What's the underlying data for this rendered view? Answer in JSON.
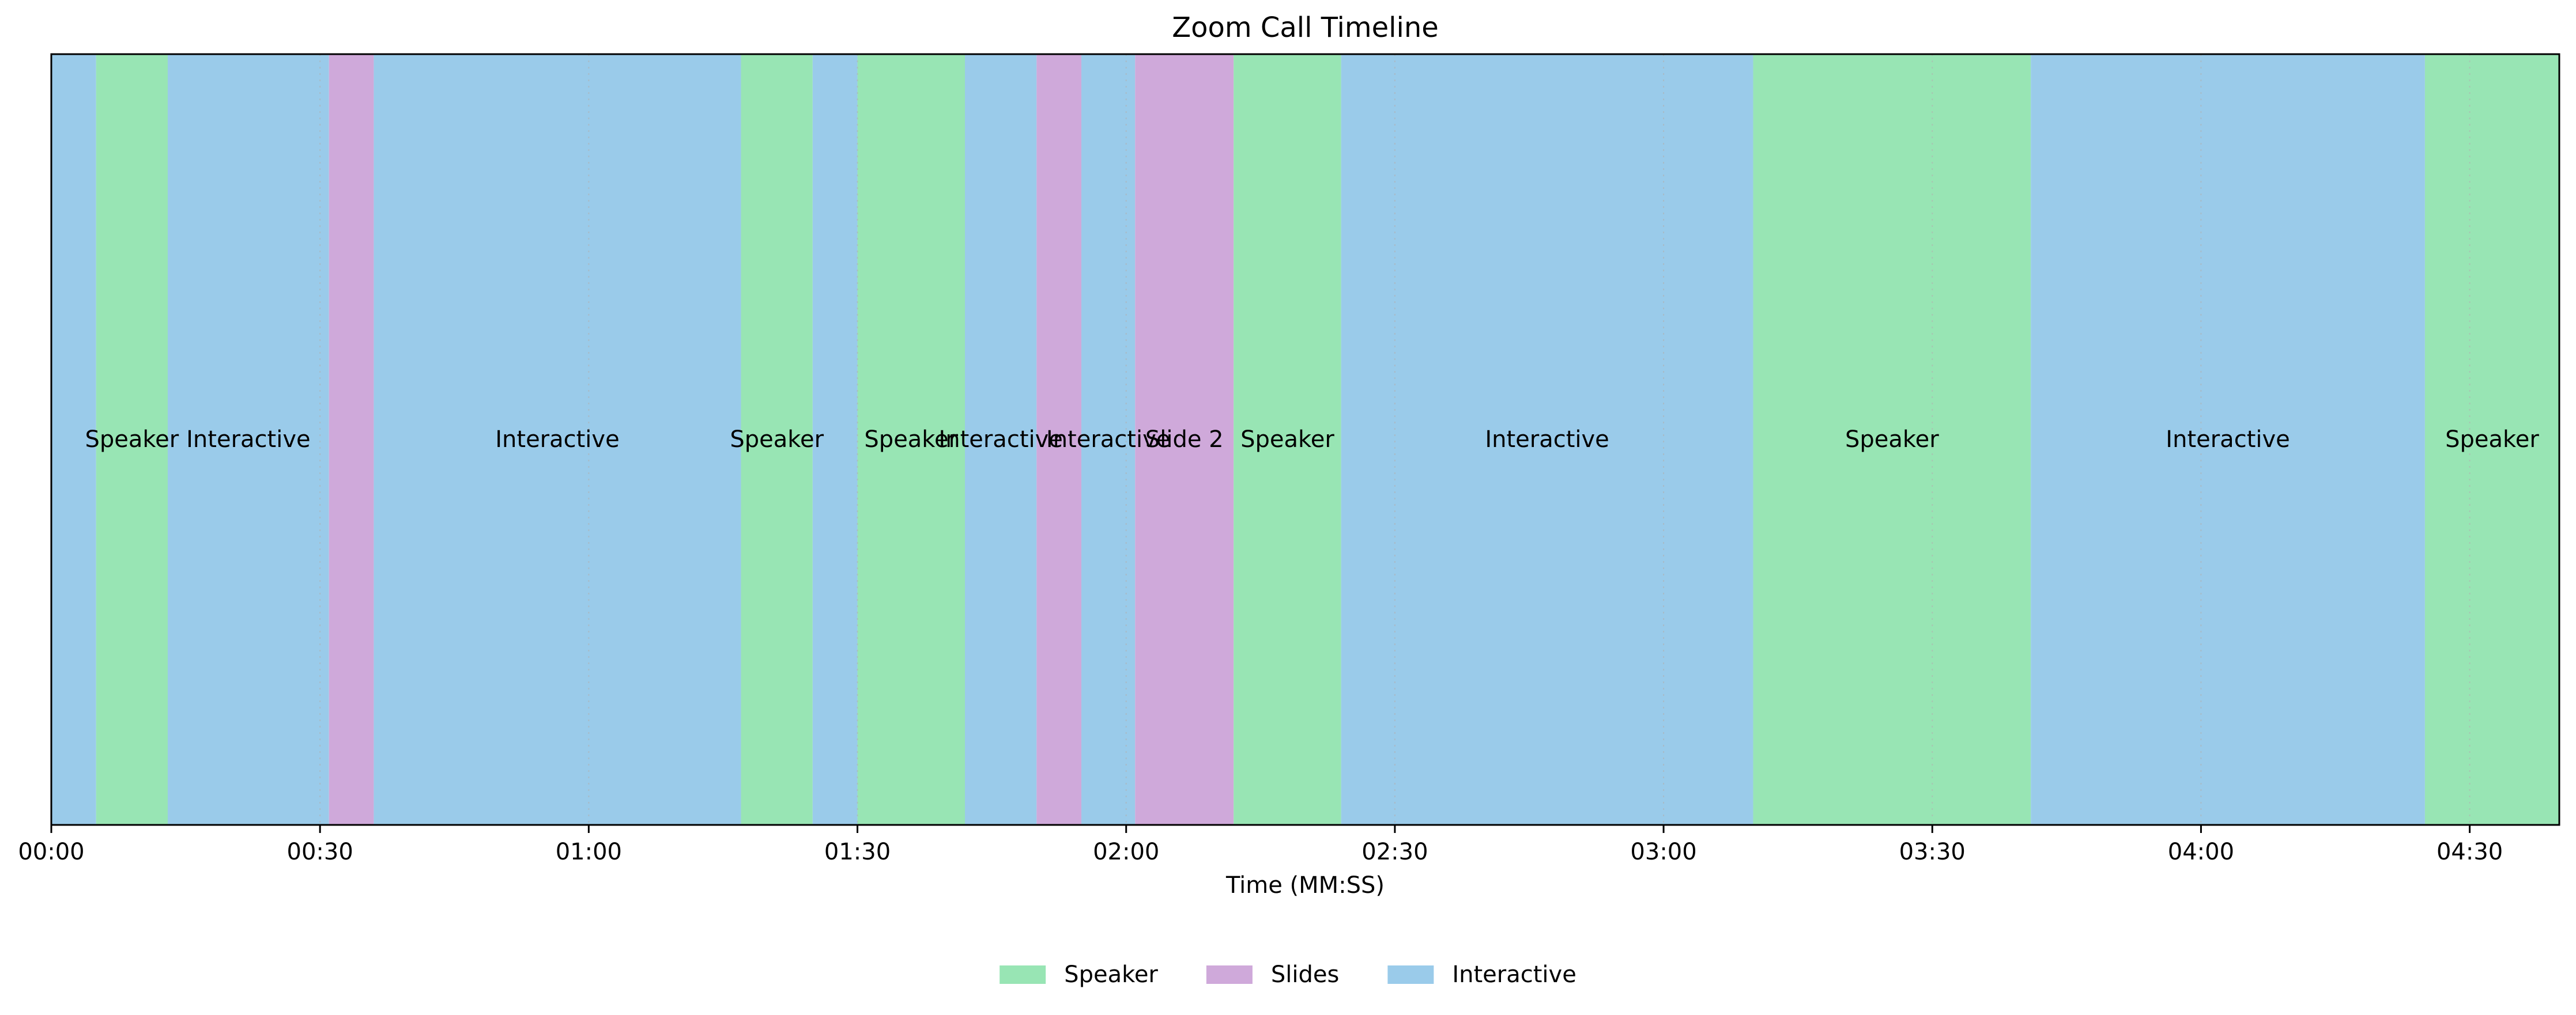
{
  "chart_data": {
    "type": "timeline",
    "title": "Zoom Call Timeline",
    "xlabel": "Time (MM:SS)",
    "ylabel": "",
    "xlim": [
      0,
      280
    ],
    "x_unit": "seconds",
    "grid": "vertical dotted at ticks",
    "ticks": [
      {
        "value": 0,
        "label": "00:00"
      },
      {
        "value": 30,
        "label": "00:30"
      },
      {
        "value": 60,
        "label": "01:00"
      },
      {
        "value": 90,
        "label": "01:30"
      },
      {
        "value": 120,
        "label": "02:00"
      },
      {
        "value": 150,
        "label": "02:30"
      },
      {
        "value": 180,
        "label": "03:00"
      },
      {
        "value": 210,
        "label": "03:30"
      },
      {
        "value": 240,
        "label": "04:00"
      },
      {
        "value": 270,
        "label": "04:30"
      }
    ],
    "categories": [
      {
        "name": "Speaker",
        "color": "#98e5b4"
      },
      {
        "name": "Slides",
        "color": "#cfa9da"
      },
      {
        "name": "Interactive",
        "color": "#9acbea"
      }
    ],
    "segments": [
      {
        "category": "Interactive",
        "start": 0.0,
        "end": 5.0,
        "label": ""
      },
      {
        "category": "Speaker",
        "start": 5.0,
        "end": 13.0,
        "label": "Speaker"
      },
      {
        "category": "Interactive",
        "start": 13.0,
        "end": 31.0,
        "label": "Interactive"
      },
      {
        "category": "Slides",
        "start": 31.0,
        "end": 36.0,
        "label": ""
      },
      {
        "category": "Interactive",
        "start": 36.0,
        "end": 77.0,
        "label": "Interactive"
      },
      {
        "category": "Speaker",
        "start": 77.0,
        "end": 85.0,
        "label": "Speaker"
      },
      {
        "category": "Interactive",
        "start": 85.0,
        "end": 90.0,
        "label": ""
      },
      {
        "category": "Speaker",
        "start": 90.0,
        "end": 102.0,
        "label": "Speaker"
      },
      {
        "category": "Interactive",
        "start": 102.0,
        "end": 110.0,
        "label": "Interactive"
      },
      {
        "category": "Slides",
        "start": 110.0,
        "end": 115.0,
        "label": ""
      },
      {
        "category": "Interactive",
        "start": 115.0,
        "end": 121.0,
        "label": "Interactive"
      },
      {
        "category": "Slides",
        "start": 121.0,
        "end": 132.0,
        "label": "Slide 2"
      },
      {
        "category": "Speaker",
        "start": 132.0,
        "end": 144.0,
        "label": "Speaker"
      },
      {
        "category": "Interactive",
        "start": 144.0,
        "end": 190.0,
        "label": "Interactive"
      },
      {
        "category": "Speaker",
        "start": 190.0,
        "end": 221.0,
        "label": "Speaker"
      },
      {
        "category": "Interactive",
        "start": 221.0,
        "end": 265.0,
        "label": "Interactive"
      },
      {
        "category": "Speaker",
        "start": 265.0,
        "end": 280.0,
        "label": "Speaker"
      }
    ],
    "legend": {
      "placement": "bottom-center",
      "entries": [
        "Speaker",
        "Slides",
        "Interactive"
      ]
    }
  }
}
